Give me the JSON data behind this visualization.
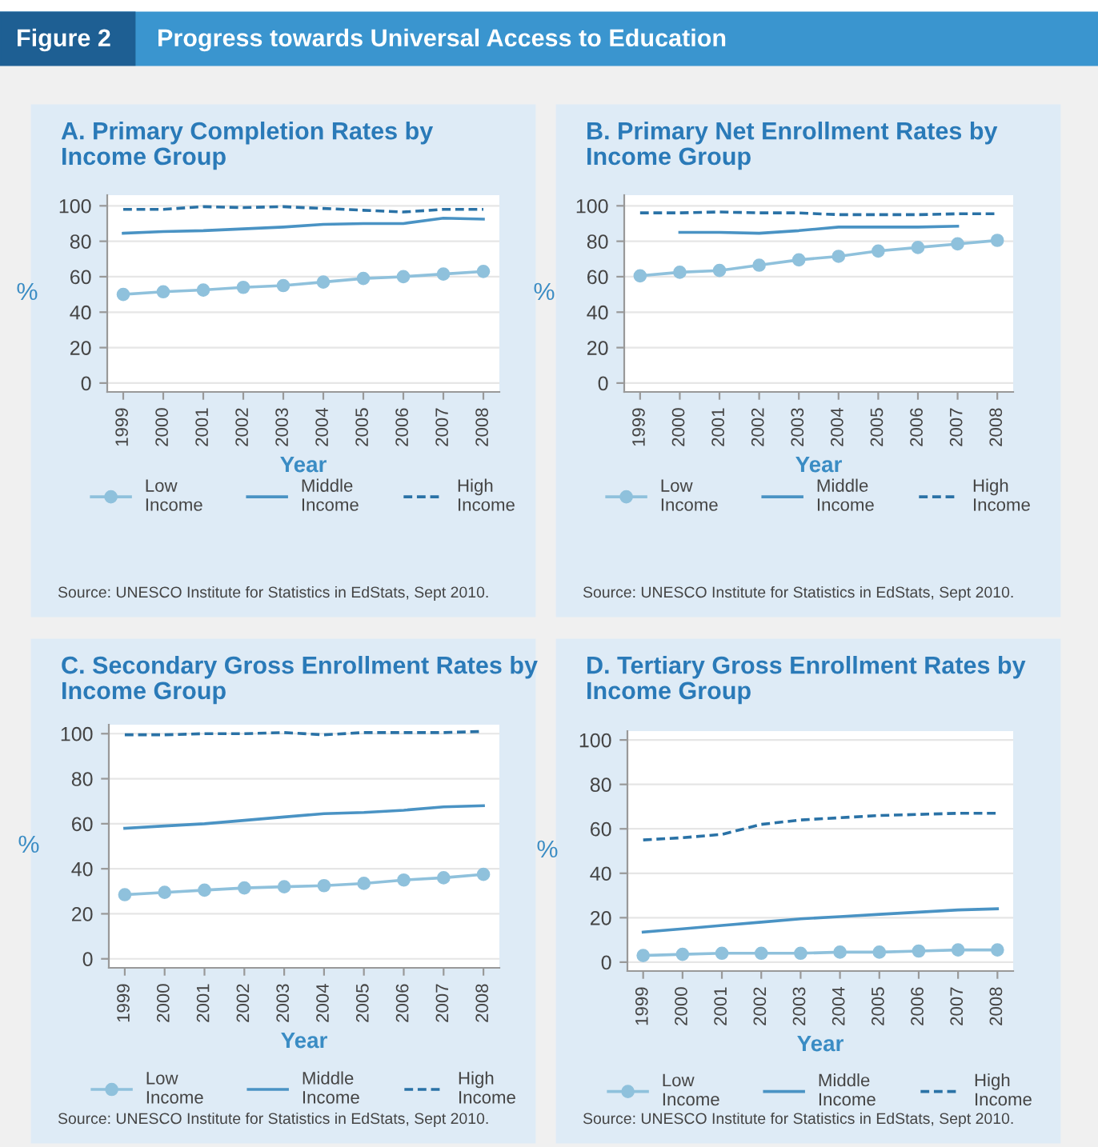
{
  "chart_data": [
    {
      "type": "line",
      "title": "A. Primary Completion Rates by\nIncome Group",
      "xlabel": "Year",
      "ylabel": "%",
      "x": [
        1999,
        2000,
        2001,
        2002,
        2003,
        2004,
        2005,
        2006,
        2007,
        2008
      ],
      "xlim": [
        1998.6,
        2008.4
      ],
      "xticks": [
        1999,
        2000,
        2001,
        2002,
        2003,
        2004,
        2005,
        2006,
        2007,
        2008
      ],
      "ylim": [
        -5,
        106
      ],
      "yticks": [
        0,
        20,
        40,
        60,
        80,
        100
      ],
      "grid": "y",
      "legend": "bottom",
      "annotations": [
        "Figure 2",
        "Progress towards Universal Access to Education",
        "Source: UNESCO Institute for Statistics in EdStats, Sept 2010."
      ],
      "series": [
        {
          "name": "Low\nIncome",
          "color": "#8fc1dc",
          "marker": "circle",
          "line_style": "solid",
          "values": [
            50,
            51.5,
            52.5,
            54,
            55,
            57,
            59,
            60,
            61.5,
            63
          ]
        },
        {
          "name": "Middle\nIncome",
          "color": "#4a93c4",
          "marker": "none",
          "line_style": "solid",
          "values": [
            84.5,
            85.5,
            86,
            87,
            88,
            89.5,
            90,
            90,
            93,
            92.5
          ]
        },
        {
          "name": "High\nIncome",
          "color": "#2a72a6",
          "marker": "none",
          "line_style": "dashed",
          "values": [
            98,
            98,
            99.5,
            99,
            99.5,
            98.5,
            97.5,
            96.5,
            98,
            98
          ]
        }
      ]
    },
    {
      "type": "line",
      "title": "B. Primary Net Enrollment Rates by\nIncome Group",
      "xlabel": "Year",
      "ylabel": "%",
      "x": [
        1999,
        2000,
        2001,
        2002,
        2003,
        2004,
        2005,
        2006,
        2007,
        2008
      ],
      "xlim": [
        1998.6,
        2008.4
      ],
      "xticks": [
        1999,
        2000,
        2001,
        2002,
        2003,
        2004,
        2005,
        2006,
        2007,
        2008
      ],
      "ylim": [
        -5,
        106
      ],
      "yticks": [
        0,
        20,
        40,
        60,
        80,
        100
      ],
      "grid": "y",
      "legend": "bottom",
      "annotations": [
        "Source: UNESCO Institute for Statistics in EdStats, Sept 2010."
      ],
      "series": [
        {
          "name": "Low\nIncome",
          "color": "#8fc1dc",
          "marker": "circle",
          "line_style": "solid",
          "values": [
            60.5,
            62.5,
            63.5,
            66.5,
            69.5,
            71.5,
            74.5,
            76.5,
            78.5,
            80.5
          ]
        },
        {
          "name": "Middle\nIncome",
          "color": "#4a93c4",
          "marker": "none",
          "line_style": "solid",
          "values": [
            null,
            85,
            85,
            84.5,
            86,
            88,
            88,
            88,
            88.5,
            null
          ]
        },
        {
          "name": "High\nIncome",
          "color": "#2a72a6",
          "marker": "none",
          "line_style": "dashed",
          "values": [
            96,
            96,
            96.5,
            96,
            96,
            95,
            95,
            95,
            95.5,
            95.5
          ]
        }
      ]
    },
    {
      "type": "line",
      "title": "C. Secondary Gross Enrollment Rates by\nIncome Group",
      "xlabel": "Year",
      "ylabel": "%",
      "x": [
        1999,
        2000,
        2001,
        2002,
        2003,
        2004,
        2005,
        2006,
        2007,
        2008
      ],
      "xlim": [
        1998.6,
        2008.4
      ],
      "xticks": [
        1999,
        2000,
        2001,
        2002,
        2003,
        2004,
        2005,
        2006,
        2007,
        2008
      ],
      "ylim": [
        -4,
        104
      ],
      "yticks": [
        0,
        20,
        40,
        60,
        80,
        100
      ],
      "grid": "y",
      "legend": "bottom",
      "annotations": [
        "Source: UNESCO Institute for Statistics in EdStats, Sept 2010."
      ],
      "series": [
        {
          "name": "Low\nIncome",
          "color": "#8fc1dc",
          "marker": "circle",
          "line_style": "solid",
          "values": [
            28.5,
            29.5,
            30.5,
            31.5,
            32,
            32.5,
            33.5,
            35,
            36,
            37.5
          ]
        },
        {
          "name": "Middle\nIncome",
          "color": "#4a93c4",
          "marker": "none",
          "line_style": "solid",
          "values": [
            58,
            59,
            60,
            61.5,
            63,
            64.5,
            65,
            66,
            67.5,
            68
          ]
        },
        {
          "name": "High\nIncome",
          "color": "#2a72a6",
          "marker": "none",
          "line_style": "dashed",
          "values": [
            99.5,
            99.5,
            100,
            100,
            100.5,
            99.5,
            100.5,
            100.5,
            100.5,
            101
          ]
        }
      ]
    },
    {
      "type": "line",
      "title": "D. Tertiary Gross Enrollment Rates by\nIncome Group",
      "xlabel": "Year",
      "ylabel": "%",
      "x": [
        1999,
        2000,
        2001,
        2002,
        2003,
        2004,
        2005,
        2006,
        2007,
        2008
      ],
      "xlim": [
        1998.6,
        2008.4
      ],
      "xticks": [
        1999,
        2000,
        2001,
        2002,
        2003,
        2004,
        2005,
        2006,
        2007,
        2008
      ],
      "ylim": [
        -4,
        104
      ],
      "yticks": [
        0,
        20,
        40,
        60,
        80,
        100
      ],
      "grid": "y",
      "legend": "bottom",
      "annotations": [
        "Source: UNESCO Institute for Statistics in EdStats, Sept 2010."
      ],
      "series": [
        {
          "name": "Low\nIncome",
          "color": "#8fc1dc",
          "marker": "circle",
          "line_style": "solid",
          "values": [
            3,
            3.5,
            4,
            4,
            4,
            4.5,
            4.5,
            5,
            5.5,
            5.5
          ]
        },
        {
          "name": "Middle\nIncome",
          "color": "#4a93c4",
          "marker": "none",
          "line_style": "solid",
          "values": [
            13.5,
            15,
            16.5,
            18,
            19.5,
            20.5,
            21.5,
            22.5,
            23.5,
            24
          ]
        },
        {
          "name": "High\nIncome",
          "color": "#2a72a6",
          "marker": "none",
          "line_style": "dashed",
          "values": [
            55,
            56,
            57.5,
            62,
            64,
            65,
            66,
            66.5,
            67,
            67
          ]
        }
      ]
    }
  ]
}
